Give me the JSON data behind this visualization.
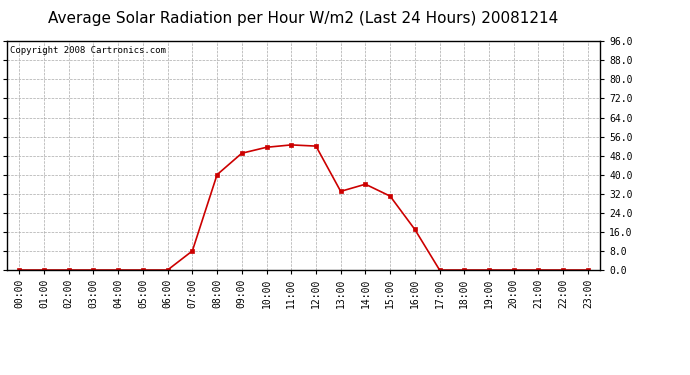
{
  "title": "Average Solar Radiation per Hour W/m2 (Last 24 Hours) 20081214",
  "copyright": "Copyright 2008 Cartronics.com",
  "hours": [
    "00:00",
    "01:00",
    "02:00",
    "03:00",
    "04:00",
    "05:00",
    "06:00",
    "07:00",
    "08:00",
    "09:00",
    "10:00",
    "11:00",
    "12:00",
    "13:00",
    "14:00",
    "15:00",
    "16:00",
    "17:00",
    "18:00",
    "19:00",
    "20:00",
    "21:00",
    "22:00",
    "23:00"
  ],
  "values": [
    0.0,
    0.0,
    0.0,
    0.0,
    0.0,
    0.0,
    0.0,
    8.0,
    40.0,
    49.0,
    51.5,
    52.5,
    52.0,
    33.0,
    36.0,
    31.0,
    17.0,
    0.0,
    0.0,
    0.0,
    0.0,
    0.0,
    0.0,
    0.0
  ],
  "line_color": "#cc0000",
  "marker": "s",
  "marker_size": 3,
  "background_color": "#ffffff",
  "plot_bg_color": "#ffffff",
  "grid_color": "#aaaaaa",
  "ylim": [
    0.0,
    96.0
  ],
  "yticks": [
    0.0,
    8.0,
    16.0,
    24.0,
    32.0,
    40.0,
    48.0,
    56.0,
    64.0,
    72.0,
    80.0,
    88.0,
    96.0
  ],
  "title_fontsize": 11,
  "copyright_fontsize": 6.5,
  "tick_fontsize": 7,
  "border_color": "#000000"
}
